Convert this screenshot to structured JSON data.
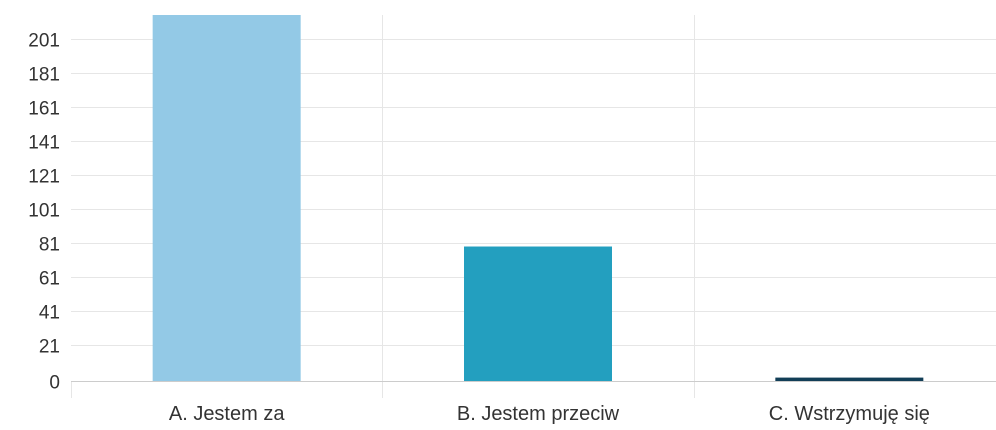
{
  "chart_data": {
    "type": "bar",
    "title": "",
    "xlabel": "",
    "ylabel": "",
    "categories": [
      "A. Jestem za",
      "B. Jestem przeciw",
      "C. Wstrzymuję się"
    ],
    "values": [
      215,
      79,
      2
    ],
    "colors": [
      "#93c9e6",
      "#239fbf",
      "#123e57"
    ],
    "ylim": [
      0,
      215
    ],
    "yticks": [
      0,
      21,
      41,
      61,
      81,
      101,
      121,
      141,
      161,
      181,
      201
    ],
    "ytick_labels": [
      "0",
      "21",
      "41",
      "61",
      "81",
      "101",
      "121",
      "141",
      "161",
      "181",
      "201"
    ],
    "grid": true,
    "legend": "none"
  }
}
